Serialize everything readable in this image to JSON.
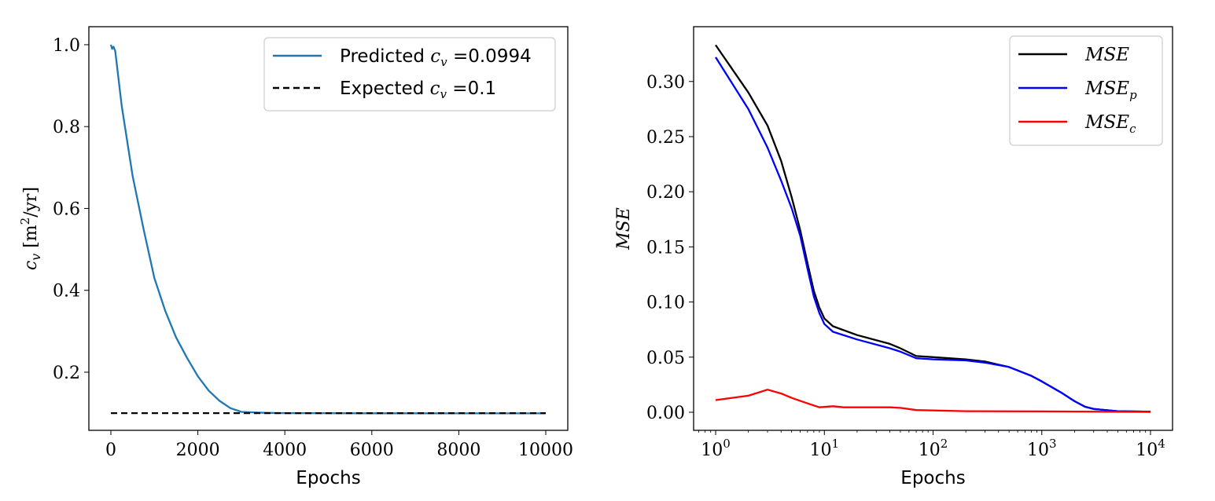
{
  "chart_data": [
    {
      "type": "line",
      "xlabel": "Epochs",
      "ylabel": {
        "symbol": "c",
        "sub": "v",
        "unit": " [m",
        "sup": "2",
        "unit_end": "/yr]"
      },
      "xlim": [
        -506,
        10506
      ],
      "ylim": [
        0.058,
        1.044
      ],
      "xticks": [
        0,
        2000,
        4000,
        6000,
        8000,
        10000
      ],
      "xtick_labels": [
        "0",
        "2000",
        "4000",
        "6000",
        "8000",
        "10000"
      ],
      "yticks": [
        0.2,
        0.4,
        0.6,
        0.8,
        1.0
      ],
      "ytick_labels": [
        "0.2",
        "0.4",
        "0.6",
        "0.8",
        "1.0"
      ],
      "legend_position": "upper-right",
      "series": [
        {
          "name": "Predicted",
          "legend_prefix": "Predicted ",
          "legend_value": "=0.0994",
          "color": "#1f77b4",
          "style": "solid",
          "x": [
            0,
            30,
            60,
            100,
            250,
            500,
            750,
            1000,
            1250,
            1500,
            1750,
            2000,
            2250,
            2500,
            2750,
            3000,
            3500,
            4000,
            6000,
            8000,
            10000
          ],
          "y": [
            1.0,
            0.99,
            0.995,
            0.985,
            0.85,
            0.68,
            0.55,
            0.43,
            0.35,
            0.285,
            0.235,
            0.19,
            0.155,
            0.13,
            0.112,
            0.103,
            0.101,
            0.1,
            0.0997,
            0.0995,
            0.0994
          ]
        },
        {
          "name": "Expected",
          "legend_prefix": "Expected ",
          "legend_value": "=0.1",
          "color": "#000000",
          "style": "dashed",
          "x": [
            0,
            10000
          ],
          "y": [
            0.1,
            0.1
          ]
        }
      ]
    },
    {
      "type": "line",
      "xlabel": "Epochs",
      "ylabel": "MSE",
      "xscale": "log",
      "xlim": [
        0.627,
        15940
      ],
      "ylim": [
        -0.0164,
        0.3497
      ],
      "xticks": [
        1,
        10,
        100,
        1000,
        10000
      ],
      "xtick_labels": [
        {
          "base": "10",
          "exp": "0"
        },
        {
          "base": "10",
          "exp": "1"
        },
        {
          "base": "10",
          "exp": "2"
        },
        {
          "base": "10",
          "exp": "3"
        },
        {
          "base": "10",
          "exp": "4"
        }
      ],
      "yticks": [
        0,
        0.05,
        0.1,
        0.15,
        0.2,
        0.25,
        0.3
      ],
      "ytick_labels": [
        "0.00",
        "0.05",
        "0.10",
        "0.15",
        "0.20",
        "0.25",
        "0.30"
      ],
      "legend_position": "upper-right",
      "series": [
        {
          "name": "MSE",
          "sub": "",
          "color": "#000000",
          "x": [
            1,
            2,
            3,
            4,
            5,
            6,
            7,
            8,
            9,
            10,
            12,
            20,
            40,
            50,
            70,
            100,
            200,
            300,
            500,
            800,
            1000,
            1500,
            2000,
            2500,
            3000,
            5000,
            10000
          ],
          "y": [
            0.333,
            0.29,
            0.26,
            0.228,
            0.195,
            0.165,
            0.135,
            0.11,
            0.095,
            0.085,
            0.078,
            0.07,
            0.062,
            0.058,
            0.051,
            0.05,
            0.048,
            0.046,
            0.041,
            0.033,
            0.028,
            0.018,
            0.01,
            0.005,
            0.003,
            0.001,
            0.0005
          ]
        },
        {
          "name": "MSE",
          "sub": "p",
          "color": "#0000ff",
          "x": [
            1,
            2,
            3,
            4,
            5,
            6,
            7,
            8,
            9,
            10,
            12,
            20,
            40,
            50,
            70,
            100,
            200,
            300,
            500,
            800,
            1000,
            1500,
            2000,
            2500,
            3000,
            5000,
            10000
          ],
          "y": [
            0.322,
            0.275,
            0.24,
            0.21,
            0.185,
            0.16,
            0.13,
            0.105,
            0.09,
            0.08,
            0.073,
            0.066,
            0.058,
            0.055,
            0.049,
            0.048,
            0.047,
            0.045,
            0.041,
            0.033,
            0.028,
            0.018,
            0.01,
            0.005,
            0.003,
            0.001,
            0.0005
          ]
        },
        {
          "name": "MSE",
          "sub": "c",
          "color": "#ff0000",
          "x": [
            1,
            2,
            3,
            4,
            5,
            7,
            9,
            12,
            15,
            40,
            50,
            70,
            200,
            1000,
            10000
          ],
          "y": [
            0.011,
            0.015,
            0.0205,
            0.017,
            0.013,
            0.008,
            0.0045,
            0.0055,
            0.0045,
            0.0045,
            0.004,
            0.002,
            0.001,
            0.0008,
            0.0003
          ]
        }
      ]
    }
  ]
}
